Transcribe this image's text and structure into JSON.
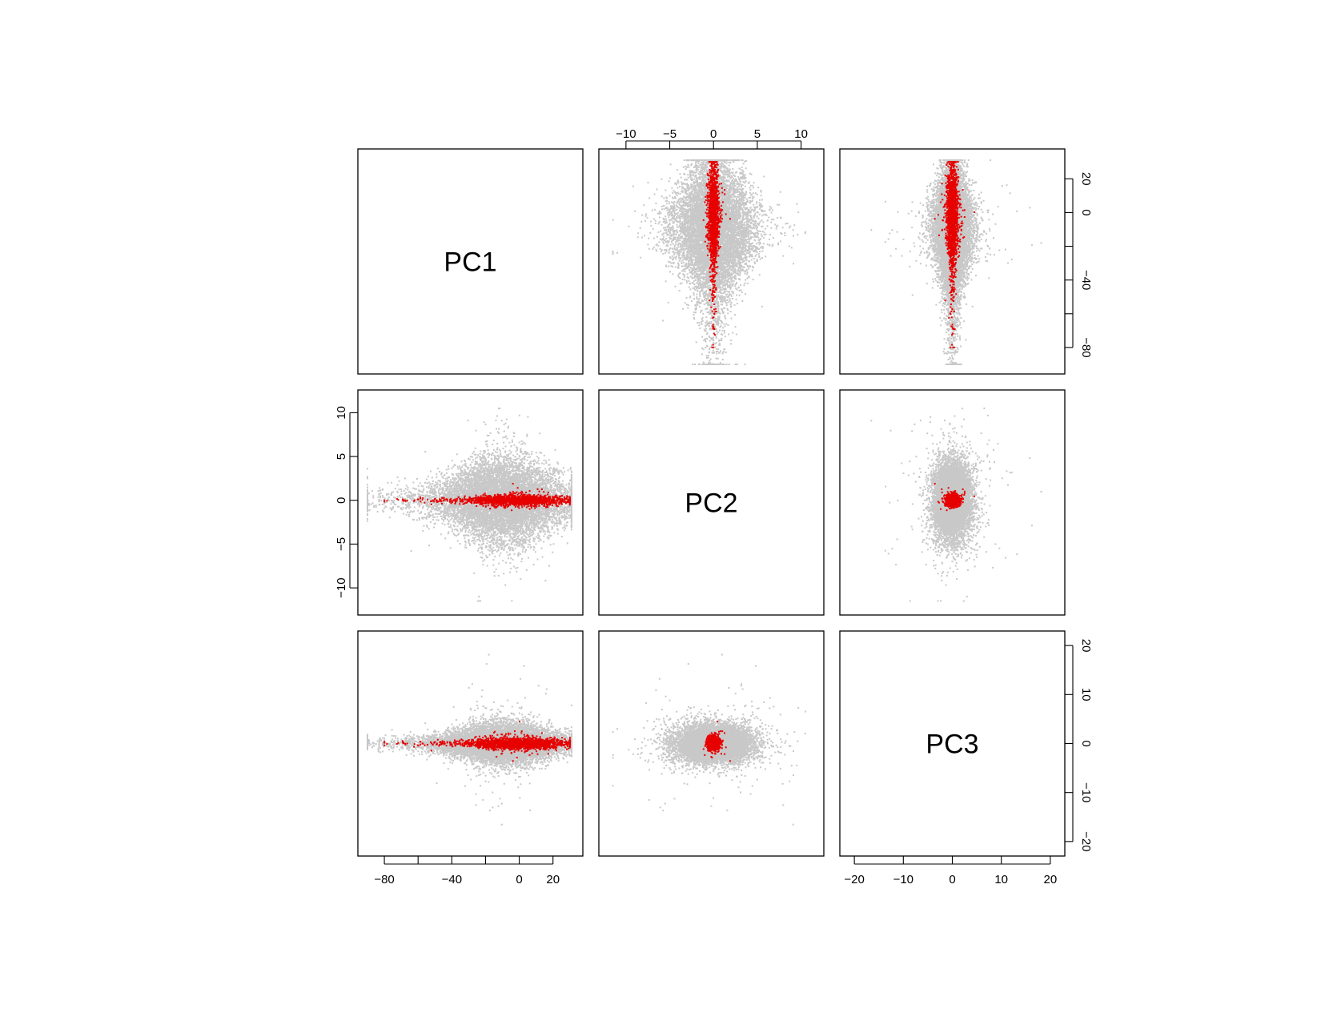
{
  "chart_data": {
    "type": "scatter",
    "kind": "pairs",
    "variables": [
      "PC1",
      "PC2",
      "PC3"
    ],
    "ranges": {
      "PC1": [
        -90,
        32
      ],
      "PC2": [
        -12,
        11.5
      ],
      "PC3": [
        -21,
        21
      ]
    },
    "ticks": {
      "PC1": [
        -80,
        -60,
        -40,
        -20,
        0,
        20
      ],
      "PC2": [
        -10,
        -5,
        0,
        5,
        10
      ],
      "PC3": [
        -20,
        -10,
        0,
        10,
        20
      ]
    },
    "tick_labels": {
      "PC1": [
        "-80",
        "",
        "-40",
        "",
        "0",
        "20"
      ],
      "PC2": [
        "-10",
        "-5",
        "0",
        "5",
        "10"
      ],
      "PC3": [
        "-20",
        "-10",
        "0",
        "10",
        "20"
      ]
    },
    "axis_sides": {
      "top": [
        "PC2"
      ],
      "right": [
        "PC1",
        "PC3"
      ],
      "left": [
        "PC2"
      ],
      "bottom": [
        "PC1",
        "PC3"
      ]
    },
    "series": [
      {
        "name": "",
        "color": "#c8c8c8",
        "n_points": 9000,
        "distribution": {
          "PC1": {
            "center": -8,
            "spread": 19,
            "tail_min": -90,
            "tail_max": 31
          },
          "PC2": {
            "center": 0,
            "spread": 2.6,
            "min": -11.5,
            "max": 10.5
          },
          "PC3": {
            "center": 0,
            "spread": 2.2,
            "min": -20,
            "max": 20
          }
        }
      },
      {
        "name": "",
        "color": "#e60000",
        "n_points": 1500,
        "distribution": {
          "PC1": {
            "center": 0,
            "spread": 15,
            "tail_min": -80,
            "tail_max": 30
          },
          "PC2": {
            "center": 0,
            "spread": 0.35,
            "min": -2,
            "max": 4
          },
          "PC3": {
            "center": 0,
            "spread": 0.7,
            "min": -4,
            "max": 5
          }
        }
      }
    ],
    "grid": false,
    "legend": "none"
  }
}
